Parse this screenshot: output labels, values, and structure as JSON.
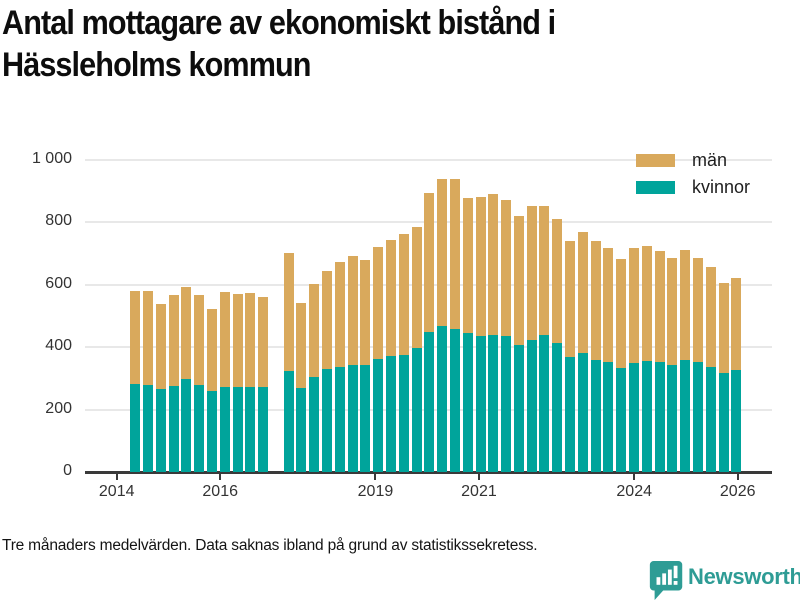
{
  "title": {
    "line1": "Antal mottagare av ekonomiskt bistånd i",
    "line2": "Hässleholms kommun"
  },
  "footer": {
    "note": "Tre månaders medelvärden. Data saknas ibland på grund av statistikssekretess."
  },
  "branding": {
    "name": "Newsworthy",
    "color": "#2E9C95"
  },
  "style": {
    "axis_color": "#3a3a3a",
    "grid_color": "#e8e8e8",
    "label_color": "#333333",
    "man_color": "#D9A95C",
    "kvinnor_color": "#00A49B"
  },
  "chart_data": {
    "type": "bar",
    "stacked": true,
    "title": "Antal mottagare av ekonomiskt bistånd i Hässleholms kommun",
    "note": "Tre månaders medelvärden. Data saknas ibland på grund av statistikssekretess.",
    "legend_position": "top-right",
    "grid": "horizontal",
    "ylim": [
      0,
      1000
    ],
    "yticks": [
      {
        "value": 0,
        "label": "0"
      },
      {
        "value": 200,
        "label": "200"
      },
      {
        "value": 400,
        "label": "400"
      },
      {
        "value": 600,
        "label": "600"
      },
      {
        "value": 800,
        "label": "800"
      },
      {
        "value": 1000,
        "label": "1 000"
      }
    ],
    "xticks": [
      {
        "year": 2014,
        "label": "2014"
      },
      {
        "year": 2016,
        "label": "2016"
      },
      {
        "year": 2019,
        "label": "2019"
      },
      {
        "year": 2021,
        "label": "2021"
      },
      {
        "year": 2024,
        "label": "2024"
      },
      {
        "year": 2026,
        "label": "2026"
      }
    ],
    "categories": [
      "2014-Q2",
      "2014-Q3",
      "2014-Q4",
      "2015-Q1",
      "2015-Q2",
      "2015-Q3",
      "2015-Q4",
      "2016-Q1",
      "2016-Q2",
      "2016-Q3",
      "2016-Q4",
      "2017-Q1",
      "2017-Q2",
      "2017-Q3",
      "2017-Q4",
      "2018-Q1",
      "2018-Q2",
      "2018-Q3",
      "2018-Q4",
      "2019-Q1",
      "2019-Q2",
      "2019-Q3",
      "2019-Q4",
      "2020-Q1",
      "2020-Q2",
      "2020-Q3",
      "2020-Q4",
      "2021-Q1",
      "2021-Q2",
      "2021-Q3",
      "2021-Q4",
      "2022-Q1",
      "2022-Q2",
      "2022-Q3",
      "2022-Q4",
      "2023-Q1",
      "2023-Q2",
      "2023-Q3",
      "2023-Q4",
      "2024-Q1",
      "2024-Q2",
      "2024-Q3",
      "2024-Q4",
      "2025-Q1",
      "2025-Q2",
      "2025-Q3",
      "2025-Q4",
      "2026-Q1"
    ],
    "missing_periods": [
      "2017-Q1"
    ],
    "series": [
      {
        "name": "män",
        "color": "#D9A95C",
        "values": [
          298,
          300,
          273,
          290,
          297,
          287,
          264,
          304,
          297,
          300,
          291,
          null,
          378,
          274,
          298,
          313,
          336,
          348,
          335,
          358,
          371,
          388,
          386,
          445,
          470,
          479,
          433,
          445,
          452,
          436,
          415,
          429,
          412,
          398,
          370,
          388,
          382,
          368,
          350,
          368,
          369,
          356,
          342,
          352,
          335,
          321,
          290,
          295
        ]
      },
      {
        "name": "kvinnor",
        "color": "#00A49B",
        "values": [
          282,
          280,
          267,
          277,
          297,
          280,
          259,
          274,
          274,
          274,
          271,
          null,
          324,
          268,
          305,
          330,
          337,
          344,
          343,
          362,
          372,
          374,
          399,
          448,
          468,
          459,
          444,
          436,
          438,
          436,
          406,
          422,
          439,
          412,
          369,
          380,
          359,
          351,
          333,
          350,
          355,
          351,
          344,
          359,
          351,
          335,
          316,
          327
        ]
      }
    ]
  }
}
